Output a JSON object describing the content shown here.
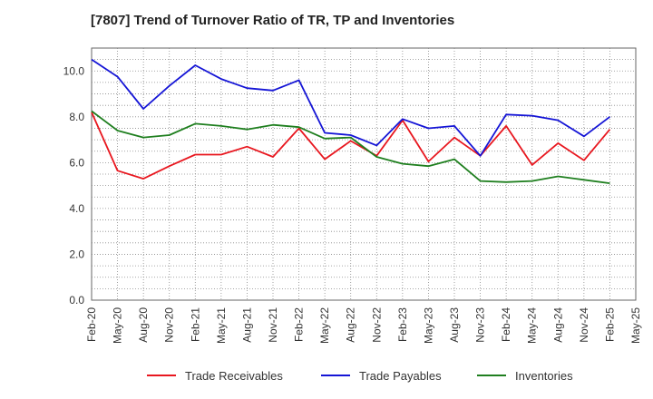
{
  "chart_data": {
    "type": "line",
    "title": "[7807]  Trend of Turnover Ratio of TR, TP and Inventories",
    "xlabel": "",
    "ylabel": "",
    "ylim": [
      0,
      11
    ],
    "yticks": [
      "0.0",
      "2.0",
      "4.0",
      "6.0",
      "8.0",
      "10.0"
    ],
    "grid": true,
    "legend_position": "bottom",
    "categories": [
      "Feb-20",
      "May-20",
      "Aug-20",
      "Nov-20",
      "Feb-21",
      "May-21",
      "Aug-21",
      "Nov-21",
      "Feb-22",
      "May-22",
      "Aug-22",
      "Nov-22",
      "Feb-23",
      "May-23",
      "Aug-23",
      "Nov-23",
      "Feb-24",
      "May-24",
      "Aug-24",
      "Nov-24",
      "Feb-25",
      "May-25"
    ],
    "series": [
      {
        "name": "Trade Receivables",
        "color": "#e8171f",
        "values": [
          8.2,
          5.65,
          5.3,
          5.85,
          6.35,
          6.35,
          6.7,
          6.25,
          7.5,
          6.15,
          6.95,
          6.3,
          7.85,
          6.05,
          7.1,
          6.3,
          7.6,
          5.9,
          6.85,
          6.1,
          7.45,
          null
        ]
      },
      {
        "name": "Trade Payables",
        "color": "#1515d6",
        "values": [
          10.5,
          9.75,
          8.35,
          9.35,
          10.25,
          9.65,
          9.25,
          9.15,
          9.6,
          7.3,
          7.2,
          6.75,
          7.9,
          7.5,
          7.6,
          6.3,
          8.1,
          8.05,
          7.85,
          7.15,
          8.0,
          null
        ]
      },
      {
        "name": "Inventories",
        "color": "#1f7f1f",
        "values": [
          8.25,
          7.4,
          7.1,
          7.2,
          7.7,
          7.6,
          7.45,
          7.65,
          7.55,
          7.05,
          7.1,
          6.25,
          5.95,
          5.85,
          6.15,
          5.2,
          5.15,
          5.2,
          5.4,
          5.25,
          5.1,
          null
        ]
      }
    ]
  }
}
